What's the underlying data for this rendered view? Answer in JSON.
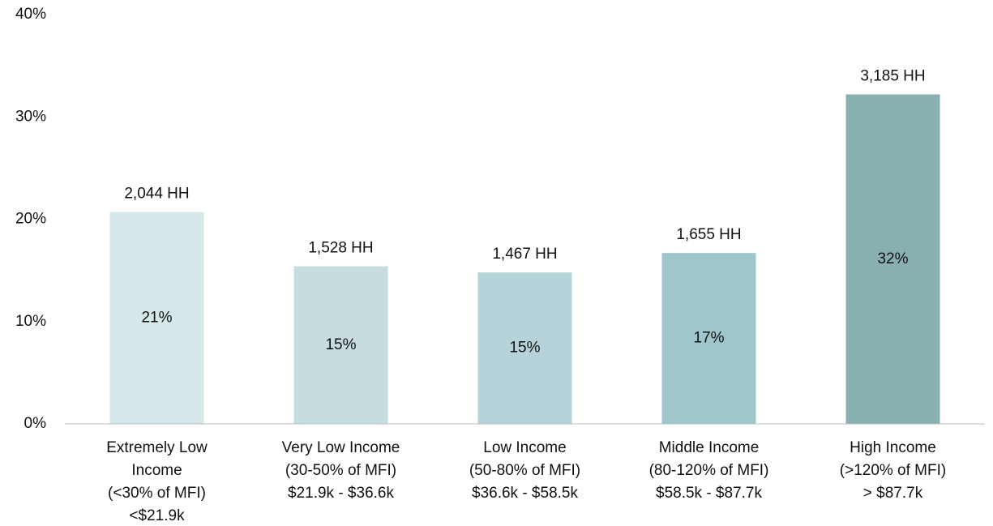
{
  "chart_data": {
    "type": "bar",
    "categories": [
      [
        "Extremely Low",
        "Income",
        "(<30% of MFI)",
        "<$21.9k"
      ],
      [
        "Very Low Income",
        "(30-50% of MFI)",
        "$21.9k - $36.6k"
      ],
      [
        "Low Income",
        "(50-80% of MFI)",
        "$36.6k - $58.5k"
      ],
      [
        "Middle Income",
        "(80-120% of MFI)",
        "$58.5k - $87.7k"
      ],
      [
        "High Income",
        "(>120% of MFI)",
        "> $87.7k"
      ]
    ],
    "values": [
      20.7,
      15.4,
      14.8,
      16.7,
      32.2
    ],
    "value_labels": [
      "21%",
      "15%",
      "15%",
      "17%",
      "32%"
    ],
    "household_labels": [
      "2,044 HH",
      "1,528 HH",
      "1,467 HH",
      "1,655 HH",
      "3,185 HH"
    ],
    "colors": [
      "#d4e7e9",
      "#c6dcdf",
      "#b5d3d8",
      "#9fc6cb",
      "#89b0b1"
    ],
    "ylim": [
      0,
      40
    ],
    "yticks": [
      {
        "value": 0,
        "label": "0%"
      },
      {
        "value": 10,
        "label": "10%"
      },
      {
        "value": 20,
        "label": "20%"
      },
      {
        "value": 30,
        "label": "30%"
      },
      {
        "value": 40,
        "label": "40%"
      }
    ],
    "grid": false
  }
}
